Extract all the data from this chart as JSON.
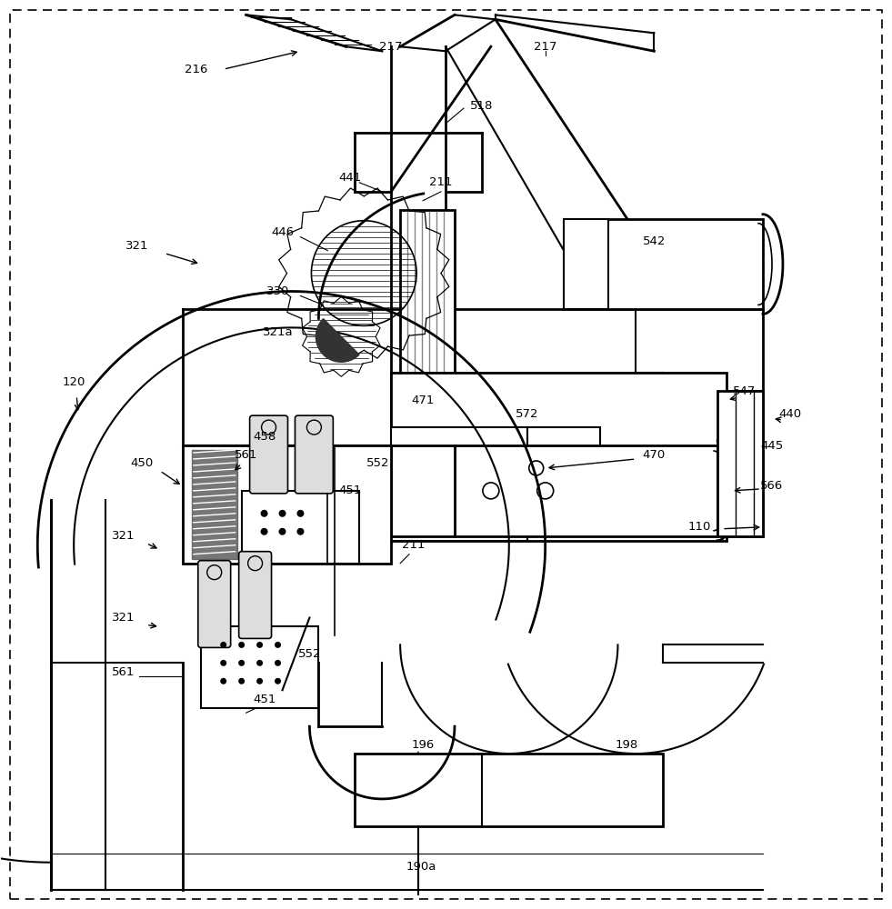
{
  "fig_width": 9.81,
  "fig_height": 10.0,
  "dpi": 100,
  "xmin": 0,
  "xmax": 981,
  "ymin": 0,
  "ymax": 1000
}
